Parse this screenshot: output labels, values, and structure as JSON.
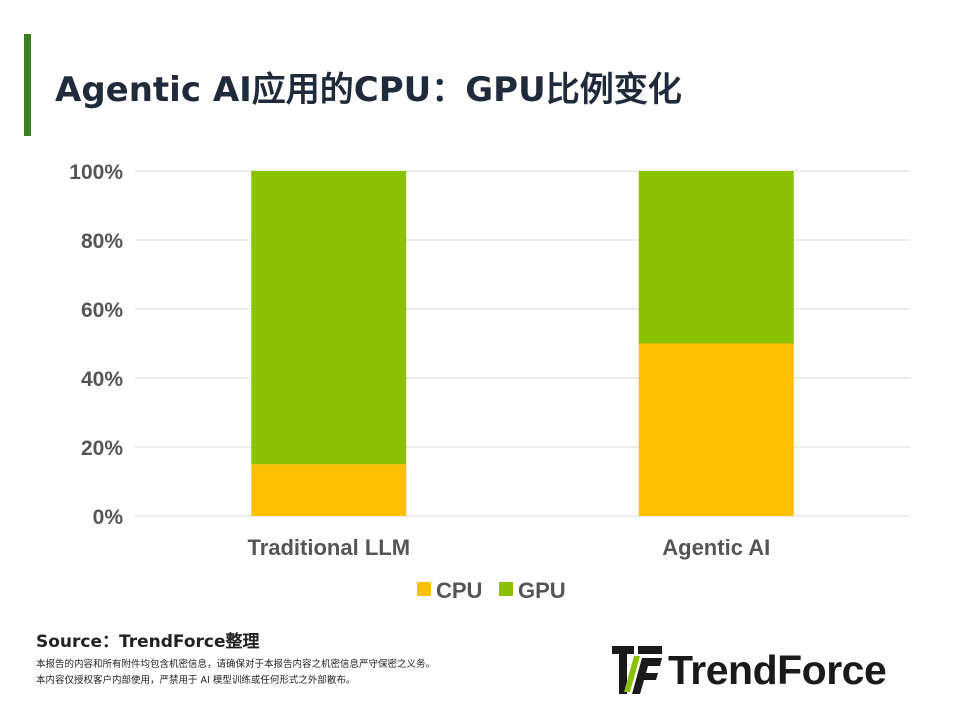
{
  "header": {
    "title": "Agentic AI应用的CPU：GPU比例变化"
  },
  "chart_data": {
    "type": "bar",
    "stacked": true,
    "categories": [
      "Traditional LLM",
      "Agentic AI"
    ],
    "series": [
      {
        "name": "CPU",
        "values": [
          15,
          50
        ],
        "color": "#ffc000"
      },
      {
        "name": "GPU",
        "values": [
          85,
          50
        ],
        "color": "#8ac101"
      }
    ],
    "yticks": [
      "0%",
      "20%",
      "40%",
      "60%",
      "80%",
      "100%"
    ],
    "ylim": [
      0,
      100
    ],
    "grid": true,
    "legend_position": "bottom"
  },
  "footer": {
    "source": "Source：TrendForce整理",
    "disclaimer_1": "本报告的内容和所有附件均包含机密信息，请确保对于本报告内容之机密信息严守保密之义务。",
    "disclaimer_2": "本内容仅授权客户内部使用，严禁用于 AI 模型训练或任何形式之外部散布。"
  },
  "logo": {
    "text": "TrendForce"
  }
}
